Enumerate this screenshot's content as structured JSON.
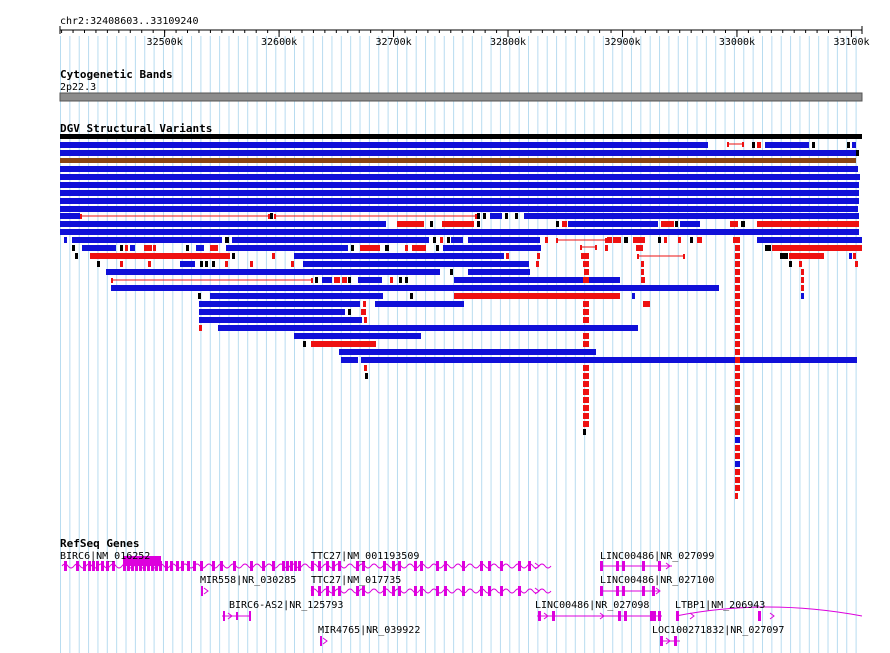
{
  "location": "chr2:32408603..33109240",
  "ruler": {
    "ticks": [
      {
        "pos": 32500000,
        "label": "32500k"
      },
      {
        "pos": 32600000,
        "label": "32600k"
      },
      {
        "pos": 32700000,
        "label": "32700k"
      },
      {
        "pos": 32800000,
        "label": "32800k"
      },
      {
        "pos": 32900000,
        "label": "32900k"
      },
      {
        "pos": 33000000,
        "label": "33000k"
      },
      {
        "pos": 33100000,
        "label": "33100k"
      }
    ]
  },
  "tracks": {
    "cytoband": {
      "title": "Cytogenetic Bands",
      "band": "2p22.3"
    },
    "dgv": {
      "title": "DGV Structural Variants"
    },
    "refseq": {
      "title": "RefSeq Genes"
    }
  },
  "colors": {
    "gain": "#1010d8",
    "loss": "#ee1111",
    "other": "#8b4513",
    "black": "#000000",
    "gene": "#dd00dd",
    "grid": "#b8dcf0"
  },
  "genes": [
    {
      "label": "BIRC6|NM_016252"
    },
    {
      "label": "TTC27|NM_001193509"
    },
    {
      "label": "LINC00486|NR_027099"
    },
    {
      "label": "MIR558|NR_030285"
    },
    {
      "label": "TTC27|NM_017735"
    },
    {
      "label": "LINC00486|NR_027100"
    },
    {
      "label": "BIRC6-AS2|NR_125793"
    },
    {
      "label": "LINC00486|NR_027098"
    },
    {
      "label": "LTBP1|NM_206943"
    },
    {
      "label": "MIR4765|NR_039922"
    },
    {
      "label": "LOC100271832|NR_027097"
    }
  ]
}
